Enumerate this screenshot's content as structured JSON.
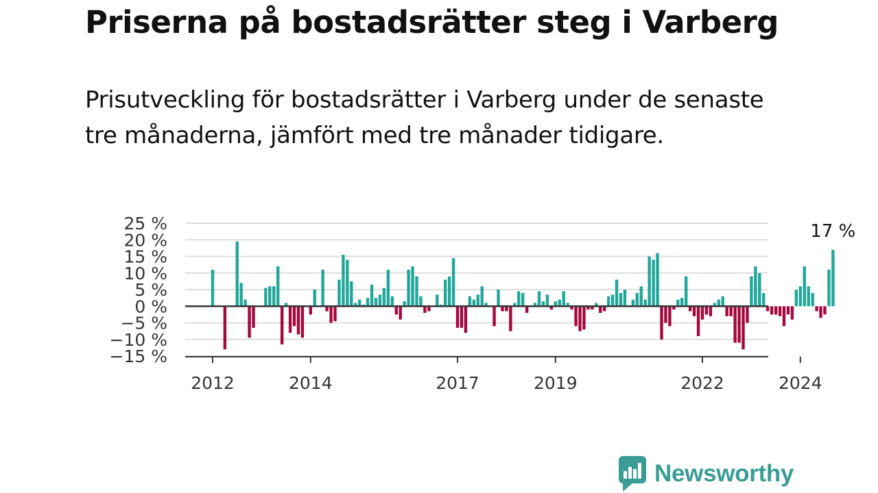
{
  "title": "Priserna på bostadsrätter steg i Varberg",
  "subtitle": "Prisutveckling för bostadsrätter i Varberg under de senaste tre månaderna, jämfört med tre månader tidigare.",
  "brand": {
    "name": "Newsworthy",
    "icon": "newsworthy-logo-icon",
    "color": "#3a9c95"
  },
  "colors": {
    "positive": "#21a69a",
    "negative": "#a3093f",
    "grid": "#dddddd",
    "zero_line": "#333333"
  },
  "chart_data": {
    "type": "bar",
    "x_unit": "month",
    "x_start": "2012-01",
    "ylim": [
      -15,
      25
    ],
    "y_ticks": [
      -15,
      -10,
      -5,
      0,
      5,
      10,
      15,
      20,
      25
    ],
    "y_tick_labels": [
      "−15 %",
      "−10 %",
      "−5 %",
      "0 %",
      "5 %",
      "10 %",
      "15 %",
      "20 %",
      "25 %"
    ],
    "x_tick_labels": [
      "2012",
      "2014",
      "2017",
      "2019",
      "2022",
      "2024"
    ],
    "x_tick_months": [
      "2012-01",
      "2014-01",
      "2017-01",
      "2019-01",
      "2022-01",
      "2024-01"
    ],
    "grid": true,
    "last_value_label": "17 %",
    "values": [
      11,
      null,
      null,
      -13,
      null,
      null,
      19.5,
      7,
      2,
      -9.5,
      -6.5,
      null,
      null,
      5.5,
      6,
      6,
      12,
      -11.5,
      1,
      -8,
      -6,
      -8.5,
      -9.5,
      null,
      -2.5,
      5,
      null,
      11,
      -1.5,
      -5,
      -4.5,
      8,
      15.5,
      14,
      7.5,
      1,
      2,
      0.5,
      2.5,
      6.5,
      2.5,
      3.5,
      5.5,
      11,
      3,
      -2.5,
      -4,
      1.5,
      11,
      12,
      9,
      3,
      -2,
      -1.5,
      null,
      3.5,
      0.5,
      8,
      9,
      14.5,
      -6.5,
      -6.5,
      -8,
      3,
      2,
      3.5,
      6,
      1,
      null,
      -6,
      5,
      -1.5,
      -1.5,
      -7.5,
      1,
      4.5,
      4,
      -2,
      null,
      1,
      4.5,
      1.5,
      3.5,
      -1,
      1.5,
      2,
      4.5,
      1,
      -1,
      -6,
      -7.5,
      -7,
      -1,
      -1,
      1,
      -2,
      -1.5,
      3,
      3.5,
      8,
      4,
      5,
      null,
      2,
      4,
      6,
      2,
      15,
      14,
      16,
      -10,
      -5,
      -6,
      -1,
      2,
      2.5,
      9,
      -1.5,
      -3,
      -9,
      -4,
      -2.5,
      -3,
      1,
      2,
      3,
      -3,
      -3,
      -11,
      -11,
      -13,
      -5,
      9,
      12,
      10,
      4,
      -1.5,
      -2.5,
      -2.5,
      -3,
      -6,
      -2.5,
      -4,
      5,
      6,
      12,
      6,
      4,
      -1.5,
      -3.5,
      -2.5,
      11,
      17
    ]
  }
}
